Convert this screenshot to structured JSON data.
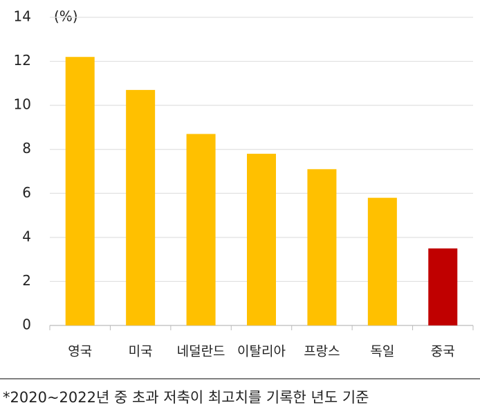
{
  "chart_data": {
    "type": "bar",
    "y_unit": "(%)",
    "categories": [
      "영국",
      "미국",
      "네덜란드",
      "이탈리아",
      "프랑스",
      "독일",
      "중국"
    ],
    "values": [
      12.2,
      10.7,
      8.7,
      7.8,
      7.1,
      5.8,
      3.5
    ],
    "colors": [
      "#ffc000",
      "#ffc000",
      "#ffc000",
      "#ffc000",
      "#ffc000",
      "#ffc000",
      "#c00000"
    ],
    "ylim": [
      0,
      14
    ],
    "yticks": [
      0,
      2,
      4,
      6,
      8,
      10,
      12,
      14
    ],
    "grid": true,
    "note": "*2020~2022년 중 초과 저축이 최고치를 기록한 년도 기준"
  }
}
